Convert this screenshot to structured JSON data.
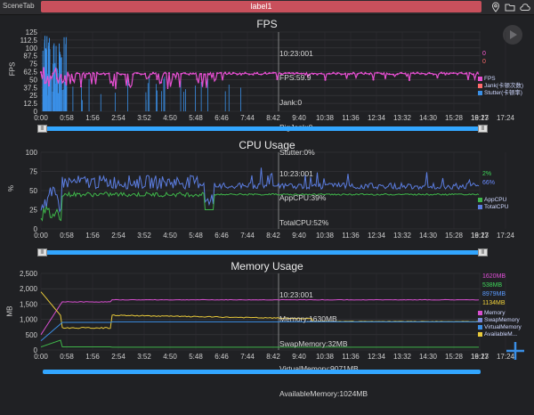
{
  "topbar": {
    "scene_tab": "SceneTab",
    "label_tab": "label1",
    "icons": [
      "location-pin-icon",
      "folder-icon",
      "cloud-icon"
    ]
  },
  "time_axis": [
    "0:00",
    "0:58",
    "1:56",
    "2:54",
    "3:52",
    "4:50",
    "5:48",
    "6:46",
    "7:44",
    "8:42",
    "9:40",
    "10:38",
    "11:36",
    "12:34",
    "13:32",
    "14:30",
    "15:28",
    "16:27",
    "17:24",
    "19:13"
  ],
  "fps": {
    "title": "FPS",
    "ylabel": "FPS",
    "yticks": [
      "0",
      "12.5",
      "25",
      "37.5",
      "50",
      "62.5",
      "75",
      "87.5",
      "100",
      "112.5",
      "125"
    ],
    "info": [
      "10:23:001",
      "FPS:59.9",
      "Jank:0",
      "BigJank:0",
      "Stutter:0%"
    ],
    "right_values": [
      {
        "text": "0",
        "color": "#ff5bd6"
      },
      {
        "text": "0",
        "color": "#ff6b6b"
      }
    ],
    "legend": [
      {
        "label": "FPS",
        "color": "#e54fd0"
      },
      {
        "label": "Jank(卡顿次数)",
        "color": "#ff6b6b"
      },
      {
        "label": "Stutter(卡顿率)",
        "color": "#3a8fe6"
      }
    ]
  },
  "cpu": {
    "title": "CPU Usage",
    "ylabel": "%",
    "yticks": [
      "0",
      "25",
      "50",
      "75",
      "100"
    ],
    "info": [
      "10:23:001",
      "AppCPU:39%",
      "TotalCPU:52%"
    ],
    "right_values": [
      {
        "text": "2%",
        "color": "#3fd65a"
      },
      {
        "text": "66%",
        "color": "#6a8cff"
      }
    ],
    "legend": [
      {
        "label": "AppCPU",
        "color": "#3fb54a"
      },
      {
        "label": "TotalCPU",
        "color": "#5b7de0"
      }
    ]
  },
  "memory": {
    "title": "Memory Usage",
    "ylabel": "MB",
    "yticks": [
      "0",
      "500",
      "1,000",
      "1,500",
      "2,000",
      "2,500"
    ],
    "info": [
      "10:23:001",
      "Memory:1630MB",
      "SwapMemory:32MB",
      "VirtualMemory:9071MB",
      "AvailableMemory:1024MB"
    ],
    "right_values": [
      {
        "text": "1620MB",
        "color": "#e04fd8"
      },
      {
        "text": "538MB",
        "color": "#3fd65a"
      },
      {
        "text": "8979MB",
        "color": "#5b9bff"
      },
      {
        "text": "1134MB",
        "color": "#f3d33a"
      }
    ],
    "legend": [
      {
        "label": "Memory",
        "color": "#d84fd0"
      },
      {
        "label": "SwapMemory",
        "color": "#7a8bd8"
      },
      {
        "label": "VirtualMemory",
        "color": "#3a8fe6"
      },
      {
        "label": "AvailableM...",
        "color": "#e8c93a"
      }
    ]
  }
}
